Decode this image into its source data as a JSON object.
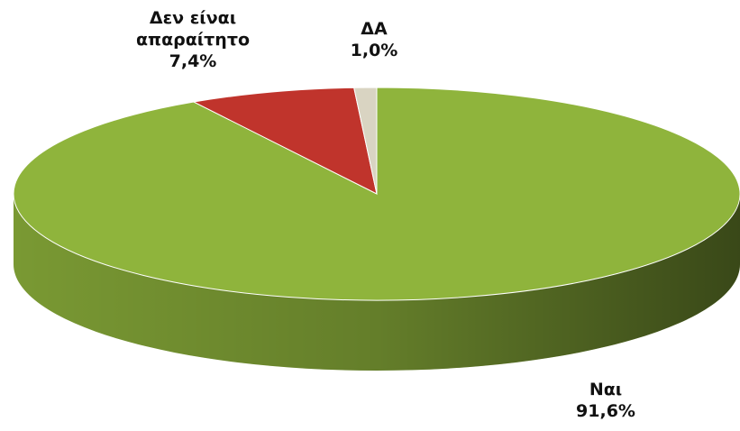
{
  "chart_data": {
    "type": "pie",
    "categories": [
      "Ναι",
      "Δεν είναι απαραίτητο",
      "ΔΑ"
    ],
    "values": [
      91.6,
      7.4,
      1.0
    ],
    "value_labels": [
      "91,6%",
      "7,4%",
      "1,0%"
    ],
    "colors": [
      "#8fb43c",
      "#c0342c",
      "#d9d4c2"
    ]
  }
}
